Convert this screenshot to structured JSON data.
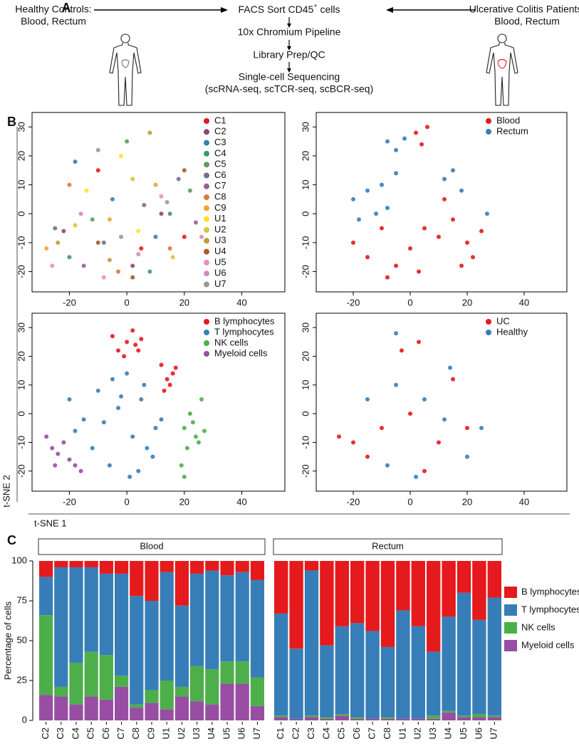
{
  "panel_labels": [
    "A",
    "B",
    "C"
  ],
  "diagram": {
    "left_source": [
      "Healthy Controls:",
      "Blood, Rectum"
    ],
    "right_source": [
      "Ulcerative Colitis Patients:",
      "Blood, Rectum"
    ],
    "sort_step": {
      "text": "FACS Sort CD45",
      "superscript": "+",
      "suffix": " cells"
    },
    "steps": [
      "10x Chromium Pipeline",
      "Library Prep/QC",
      "Single-cell Sequencing",
      "(scRNA-seq, scTCR-seq, scBCR-seq)"
    ]
  },
  "tsne_axis_labels": {
    "x": "t-SNE 1",
    "y": "t-SNE 2"
  },
  "chart_data": [
    {
      "type": "scatter",
      "xlim": [
        -33,
        55
      ],
      "ylim": [
        -27,
        35
      ],
      "xticks": [
        -20,
        0,
        20,
        40
      ],
      "yticks": [
        -20,
        -10,
        0,
        10,
        20,
        30
      ],
      "legend": "top-right",
      "series": [
        {
          "name": "C1",
          "color": "#e41a1c",
          "x": [
            5,
            -10,
            20
          ],
          "values": [
            -12,
            15,
            -8
          ]
        },
        {
          "name": "C2",
          "color": "#8e4a6e",
          "x": [
            12,
            -22,
            2
          ],
          "values": [
            0,
            -6,
            -18
          ]
        },
        {
          "name": "C3",
          "color": "#3e7bb0",
          "x": [
            -5,
            10,
            -18
          ],
          "values": [
            5,
            -8,
            18
          ]
        },
        {
          "name": "C4",
          "color": "#3d9a73",
          "x": [
            -20,
            8,
            15
          ],
          "values": [
            -15,
            -20,
            0
          ]
        },
        {
          "name": "C5",
          "color": "#5e9c5a",
          "x": [
            0,
            -12,
            22
          ],
          "values": [
            25,
            -2,
            8
          ]
        },
        {
          "name": "C6",
          "color": "#76708f",
          "x": [
            -8,
            18,
            -25
          ],
          "values": [
            -10,
            12,
            -5
          ]
        },
        {
          "name": "C7",
          "color": "#9a5ea0",
          "x": [
            6,
            -15,
            24
          ],
          "values": [
            3,
            -18,
            -3
          ]
        },
        {
          "name": "C8",
          "color": "#e0773c",
          "x": [
            -3,
            15,
            -20
          ],
          "values": [
            -20,
            -12,
            10
          ]
        },
        {
          "name": "C9",
          "color": "#f5a230",
          "x": [
            10,
            -6,
            -28
          ],
          "values": [
            10,
            -2,
            -12
          ]
        },
        {
          "name": "U1",
          "color": "#fde22a",
          "x": [
            -14,
            -2,
            4
          ],
          "values": [
            8,
            20,
            -6
          ]
        },
        {
          "name": "U2",
          "color": "#dcc532",
          "x": [
            -18,
            2,
            16
          ],
          "values": [
            -4,
            12,
            -15
          ]
        },
        {
          "name": "U3",
          "color": "#c29a3c",
          "x": [
            -6,
            8,
            -24
          ],
          "values": [
            -16,
            28,
            -10
          ]
        },
        {
          "name": "U4",
          "color": "#a65a26",
          "x": [
            20,
            -10,
            2
          ],
          "values": [
            15,
            -10,
            -22
          ]
        },
        {
          "name": "U5",
          "color": "#f08cc0",
          "x": [
            -26,
            -8,
            12
          ],
          "values": [
            -18,
            -22,
            6
          ]
        },
        {
          "name": "U6",
          "color": "#d38bbd",
          "x": [
            -16,
            4,
            26
          ],
          "values": [
            0,
            -14,
            -8
          ]
        },
        {
          "name": "U7",
          "color": "#999999",
          "x": [
            -2,
            14,
            -10
          ],
          "values": [
            -8,
            4,
            22
          ]
        }
      ]
    },
    {
      "type": "scatter",
      "xlim": [
        -33,
        55
      ],
      "ylim": [
        -27,
        35
      ],
      "xticks": [
        -20,
        0,
        20,
        40
      ],
      "yticks": [
        -20,
        -10,
        0,
        10,
        20,
        30
      ],
      "legend": "top-right",
      "series": [
        {
          "name": "Blood",
          "color": "#e41a1c",
          "x": [
            2,
            4,
            6,
            -20,
            -15,
            -10,
            -5,
            0,
            5,
            10,
            15,
            20,
            25,
            -8,
            3,
            12,
            18,
            22
          ],
          "values": [
            28,
            24,
            30,
            -10,
            -15,
            -5,
            -18,
            -12,
            -5,
            -8,
            -2,
            -10,
            -6,
            -22,
            -20,
            5,
            -18,
            -15
          ]
        },
        {
          "name": "Rectum",
          "color": "#377eb8",
          "x": [
            -8,
            -5,
            -2,
            -20,
            -15,
            -10,
            -5,
            -12,
            12,
            15,
            18,
            -18,
            -8,
            27
          ],
          "values": [
            25,
            22,
            26,
            5,
            8,
            10,
            14,
            0,
            12,
            15,
            8,
            -2,
            2,
            0
          ]
        }
      ]
    },
    {
      "type": "scatter",
      "xlim": [
        -33,
        55
      ],
      "ylim": [
        -27,
        35
      ],
      "xticks": [
        -20,
        0,
        20,
        40
      ],
      "yticks": [
        -20,
        -10,
        0,
        10,
        20,
        30
      ],
      "legend": "top-right",
      "series": [
        {
          "name": "B lymphocytes",
          "color": "#e41a1c",
          "x": [
            -5,
            -3,
            0,
            2,
            4,
            5,
            -1,
            3,
            12,
            14,
            16,
            13,
            15,
            17
          ],
          "values": [
            27,
            22,
            25,
            29,
            22,
            26,
            20,
            24,
            17,
            12,
            14,
            8,
            10,
            16
          ]
        },
        {
          "name": "T lymphocytes",
          "color": "#377eb8",
          "x": [
            -20,
            -15,
            -10,
            -5,
            0,
            5,
            10,
            -12,
            -8,
            -3,
            2,
            7,
            12,
            -18,
            -6,
            4,
            9,
            -2,
            6,
            1
          ],
          "values": [
            5,
            -2,
            8,
            12,
            14,
            5,
            -5,
            -12,
            -3,
            2,
            -8,
            -12,
            -2,
            -6,
            -18,
            -20,
            -15,
            6,
            10,
            -22
          ]
        },
        {
          "name": "NK cells",
          "color": "#4daf4a",
          "x": [
            20,
            22,
            24,
            26,
            21,
            23,
            25,
            19,
            20,
            27
          ],
          "values": [
            -5,
            0,
            -8,
            5,
            -12,
            -3,
            -10,
            -18,
            -22,
            -6
          ]
        },
        {
          "name": "Myeloid cells",
          "color": "#984ea3",
          "x": [
            -28,
            -26,
            -24,
            -22,
            -20,
            -18,
            -16,
            -25
          ],
          "values": [
            -8,
            -12,
            -14,
            -10,
            -16,
            -18,
            -20,
            -18
          ]
        }
      ]
    },
    {
      "type": "scatter",
      "xlim": [
        -33,
        55
      ],
      "ylim": [
        -27,
        35
      ],
      "xticks": [
        -20,
        0,
        20,
        40
      ],
      "yticks": [
        -20,
        -10,
        0,
        10,
        20,
        30
      ],
      "legend": "top-right",
      "series": [
        {
          "name": "UC",
          "color": "#e41a1c",
          "x": [
            3,
            -3,
            15,
            -20,
            -10,
            0,
            10,
            20,
            -15,
            5,
            -25
          ],
          "values": [
            25,
            22,
            12,
            -10,
            -5,
            0,
            -10,
            -5,
            -15,
            -20,
            -8
          ]
        },
        {
          "name": "Healthy",
          "color": "#377eb8",
          "x": [
            -5,
            14,
            -15,
            -5,
            5,
            12,
            25,
            -8,
            20,
            2
          ],
          "values": [
            28,
            16,
            5,
            10,
            5,
            -2,
            -5,
            -18,
            -15,
            -22
          ]
        }
      ]
    },
    {
      "type": "stacked_bar",
      "y_label": "Percentage of cells",
      "ylim": [
        0,
        100
      ],
      "yticks": [
        0,
        25,
        50,
        75,
        100
      ],
      "legend": "right",
      "facets": [
        {
          "title": "Blood",
          "categories": [
            "C2",
            "C3",
            "C4",
            "C5",
            "C6",
            "C7",
            "C8",
            "C9",
            "U1",
            "U2",
            "U3",
            "U4",
            "U5",
            "U6",
            "U7"
          ],
          "series": [
            {
              "name": "Myeloid cells",
              "color": "#984ea3",
              "values": [
                16,
                15,
                10,
                15,
                13,
                21,
                8,
                11,
                7,
                15,
                12,
                10,
                23,
                23,
                9
              ]
            },
            {
              "name": "NK cells",
              "color": "#4daf4a",
              "values": [
                50,
                6,
                26,
                28,
                28,
                7,
                2,
                8,
                18,
                6,
                22,
                22,
                14,
                14,
                18
              ]
            },
            {
              "name": "T lymphocytes",
              "color": "#377eb8",
              "values": [
                24,
                75,
                60,
                53,
                51,
                64,
                68,
                56,
                68,
                51,
                58,
                62,
                54,
                56,
                61
              ]
            },
            {
              "name": "B lymphocytes",
              "color": "#e41a1c",
              "values": [
                10,
                4,
                4,
                4,
                8,
                8,
                22,
                25,
                7,
                28,
                8,
                6,
                9,
                7,
                12
              ]
            }
          ]
        },
        {
          "title": "Rectum",
          "categories": [
            "C1",
            "C2",
            "C3",
            "C4",
            "C5",
            "C6",
            "C7",
            "C8",
            "U1",
            "U2",
            "U3",
            "U4",
            "U5",
            "U6",
            "U7"
          ],
          "series": [
            {
              "name": "Myeloid cells",
              "color": "#984ea3",
              "values": [
                2,
                1,
                2,
                1,
                3,
                1,
                1,
                1,
                1,
                1,
                1,
                5,
                2,
                2,
                2
              ]
            },
            {
              "name": "NK cells",
              "color": "#4daf4a",
              "values": [
                1,
                0,
                1,
                1,
                1,
                1,
                0,
                1,
                0,
                0,
                2,
                1,
                1,
                2,
                1
              ]
            },
            {
              "name": "T lymphocytes",
              "color": "#377eb8",
              "values": [
                64,
                44,
                91,
                45,
                55,
                59,
                55,
                44,
                68,
                58,
                40,
                59,
                77,
                59,
                74
              ]
            },
            {
              "name": "B lymphocytes",
              "color": "#e41a1c",
              "values": [
                33,
                55,
                6,
                53,
                41,
                39,
                44,
                54,
                31,
                41,
                57,
                35,
                20,
                37,
                23
              ]
            }
          ]
        }
      ]
    }
  ]
}
